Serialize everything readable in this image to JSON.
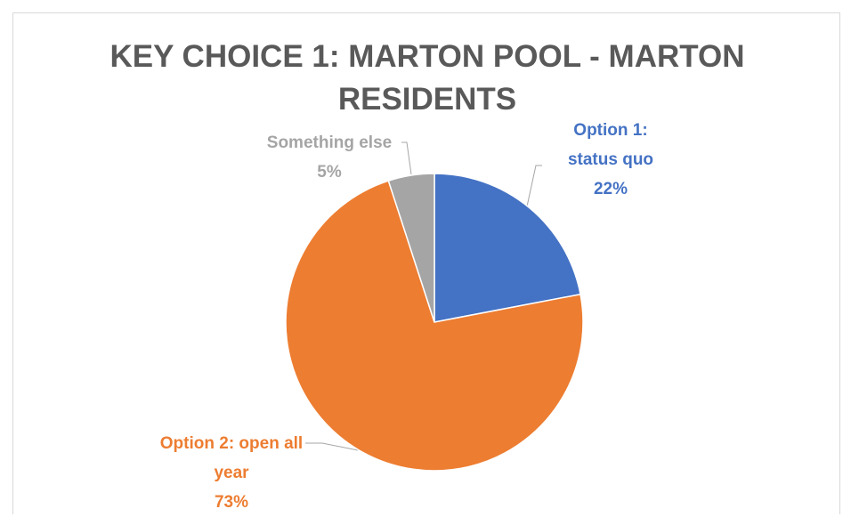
{
  "chart_data": {
    "type": "pie",
    "title": "KEY CHOICE 1: MARTON POOL - MARTON RESIDENTS",
    "categories": [
      "Option 1: status quo",
      "Option 2: open all year",
      "Something else"
    ],
    "values": [
      22,
      73,
      5
    ],
    "value_labels": [
      "22%",
      "73%",
      "5%"
    ],
    "colors": [
      "#4472c4",
      "#ed7d31",
      "#a5a5a5"
    ]
  }
}
